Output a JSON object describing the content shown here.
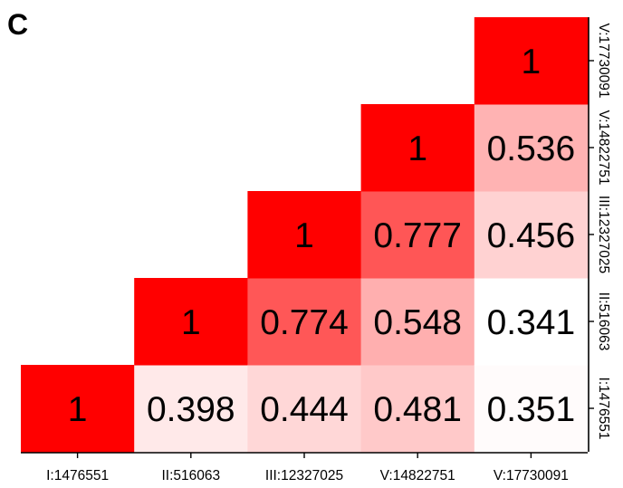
{
  "panel_label": "C",
  "chart_data": {
    "type": "heatmap",
    "title": "",
    "xlabel": "",
    "ylabel": "",
    "x_categories": [
      "I:1476551",
      "II:516063",
      "III:12327025",
      "V:14822751",
      "V:17730091"
    ],
    "y_categories": [
      "I:1476551",
      "II:516063",
      "III:12327025",
      "V:14822751",
      "V:17730091"
    ],
    "matrix": [
      [
        1,
        null,
        null,
        null,
        null
      ],
      [
        0.398,
        1,
        null,
        null,
        null
      ],
      [
        0.444,
        0.774,
        1,
        null,
        null
      ],
      [
        0.481,
        0.548,
        0.777,
        1,
        null
      ],
      [
        0.351,
        0.341,
        0.456,
        0.536,
        1
      ]
    ],
    "cell_labels": [
      [
        "1",
        "",
        "",
        "",
        ""
      ],
      [
        "0.398",
        "1",
        "",
        "",
        ""
      ],
      [
        "0.444",
        "0.774",
        "1",
        "",
        ""
      ],
      [
        "0.481",
        "0.548",
        "0.777",
        "1",
        ""
      ],
      [
        "0.351",
        "0.341",
        "0.456",
        "0.536",
        "1"
      ]
    ],
    "color_scale": {
      "low": "#ffffff",
      "high": "#ff0000",
      "range": [
        0.34,
        1
      ]
    },
    "legend": "none",
    "grid": false
  }
}
